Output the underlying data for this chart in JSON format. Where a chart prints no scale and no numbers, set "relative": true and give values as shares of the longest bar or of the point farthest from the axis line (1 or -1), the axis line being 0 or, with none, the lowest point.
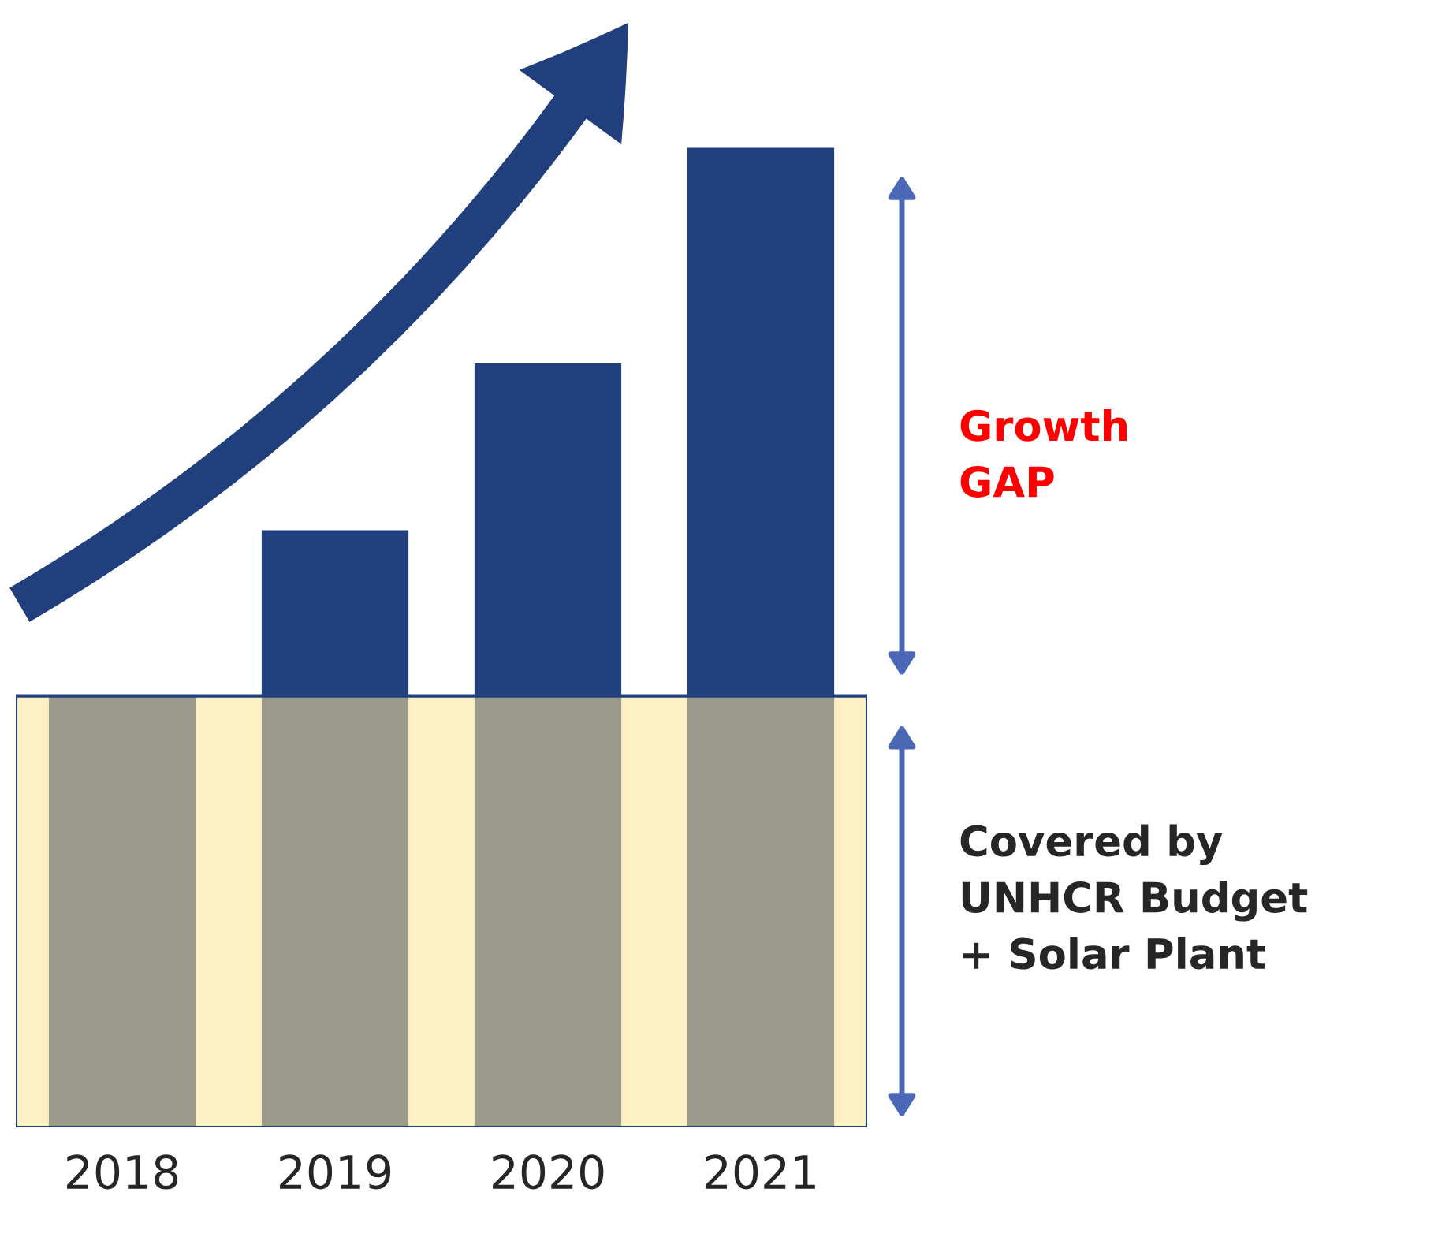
{
  "chart_data": {
    "type": "bar",
    "relative": true,
    "categories": [
      "2018",
      "2019",
      "2020",
      "2021"
    ],
    "series": [
      {
        "color": "#203f7c",
        "values": [
          0.44,
          0.61,
          0.78,
          1
        ]
      }
    ],
    "bands": [
      {
        "axis": "y",
        "from": 0,
        "to": 0.44,
        "label": "Covered by\nUNHCR Budget\n+ Solar Plant",
        "color": "#ffe699"
      }
    ],
    "annotations": [
      "Growth\nGAP"
    ]
  }
}
